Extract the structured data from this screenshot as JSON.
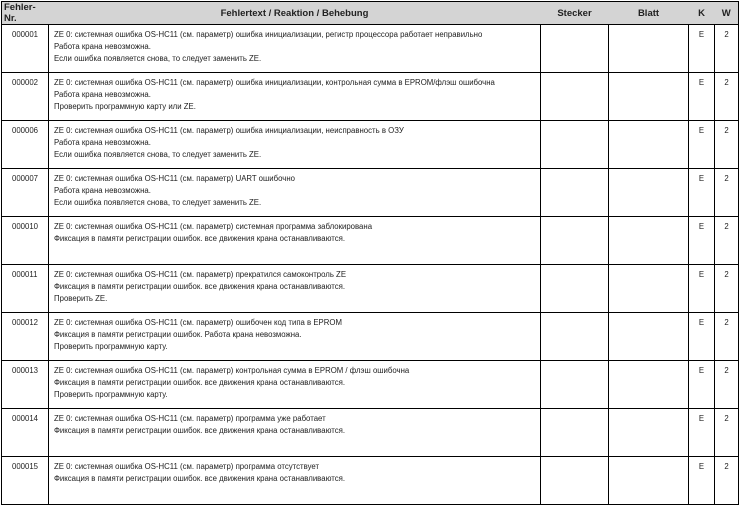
{
  "header": {
    "nr": "Fehler-Nr.",
    "text": "Fehlertext / Reaktion / Behebung",
    "stecker": "Stecker",
    "blatt": "Blatt",
    "k": "K",
    "w": "W"
  },
  "rows": [
    {
      "nr": "000001",
      "lines": [
        "ZE 0: системная ошибка OS-HC11 (см. параметр) ошибка инициализации, регистр процессора работает неправильно",
        "Работа крана невозможна.",
        "Если ошибка появляется снова, то следует заменить ZE."
      ],
      "stecker": "",
      "blatt": "",
      "k": "E",
      "w": "2"
    },
    {
      "nr": "000002",
      "lines": [
        "ZE 0: системная ошибка OS-HC11 (см. параметр) ошибка инициализации, контрольная сумма в EPROM/флэш ошибочна",
        "Работа крана невозможна.",
        "Проверить программную карту или ZE."
      ],
      "stecker": "",
      "blatt": "",
      "k": "E",
      "w": "2"
    },
    {
      "nr": "000006",
      "lines": [
        "ZE 0: системная ошибка OS-HC11 (см. параметр) ошибка инициализации, неисправность в ОЗУ",
        "Работа крана невозможна.",
        "Если ошибка появляется снова, то следует заменить ZE."
      ],
      "stecker": "",
      "blatt": "",
      "k": "E",
      "w": "2"
    },
    {
      "nr": "000007",
      "lines": [
        "ZE 0: системная ошибка OS-HC11 (см. параметр) UART ошибочно",
        "Работа крана невозможна.",
        "Если ошибка появляется снова, то следует заменить ZE."
      ],
      "stecker": "",
      "blatt": "",
      "k": "E",
      "w": "2"
    },
    {
      "nr": "000010",
      "lines": [
        "ZE 0: системная ошибка OS-HC11 (см. параметр) системная программа заблокирована",
        "Фиксация в памяти регистрации ошибок. все движения крана останавливаются."
      ],
      "stecker": "",
      "blatt": "",
      "k": "E",
      "w": "2"
    },
    {
      "nr": "000011",
      "lines": [
        "ZE 0: системная ошибка OS-HC11 (см. параметр) прекратился самоконтроль ZE",
        "Фиксация в памяти регистрации ошибок. все движения крана останавливаются.",
        "Проверить ZE."
      ],
      "stecker": "",
      "blatt": "",
      "k": "E",
      "w": "2"
    },
    {
      "nr": "000012",
      "lines": [
        "ZE 0: системная ошибка OS-HC11 (см. параметр) ошибочен код типа в EPROM",
        "Фиксация в памяти регистрации ошибок. Работа крана невозможна.",
        "Проверить программную карту."
      ],
      "stecker": "",
      "blatt": "",
      "k": "E",
      "w": "2"
    },
    {
      "nr": "000013",
      "lines": [
        "ZE 0: системная ошибка OS-HC11 (см. параметр) контрольная сумма в EPROM / флэш ошибочна",
        "Фиксация в памяти регистрации ошибок. все движения крана останавливаются.",
        "Проверить программную карту."
      ],
      "stecker": "",
      "blatt": "",
      "k": "E",
      "w": "2"
    },
    {
      "nr": "000014",
      "lines": [
        "ZE 0: системная ошибка OS-HC11 (см. параметр) программа уже работает",
        "Фиксация в памяти регистрации ошибок. все движения крана останавливаются."
      ],
      "stecker": "",
      "blatt": "",
      "k": "E",
      "w": "2"
    },
    {
      "nr": "000015",
      "lines": [
        "ZE 0: системная ошибка OS-HC11 (см. параметр) программа отсутствует",
        "Фиксация в памяти регистрации ошибок. все движения крана останавливаются."
      ],
      "stecker": "",
      "blatt": "",
      "k": "E",
      "w": "2"
    }
  ]
}
